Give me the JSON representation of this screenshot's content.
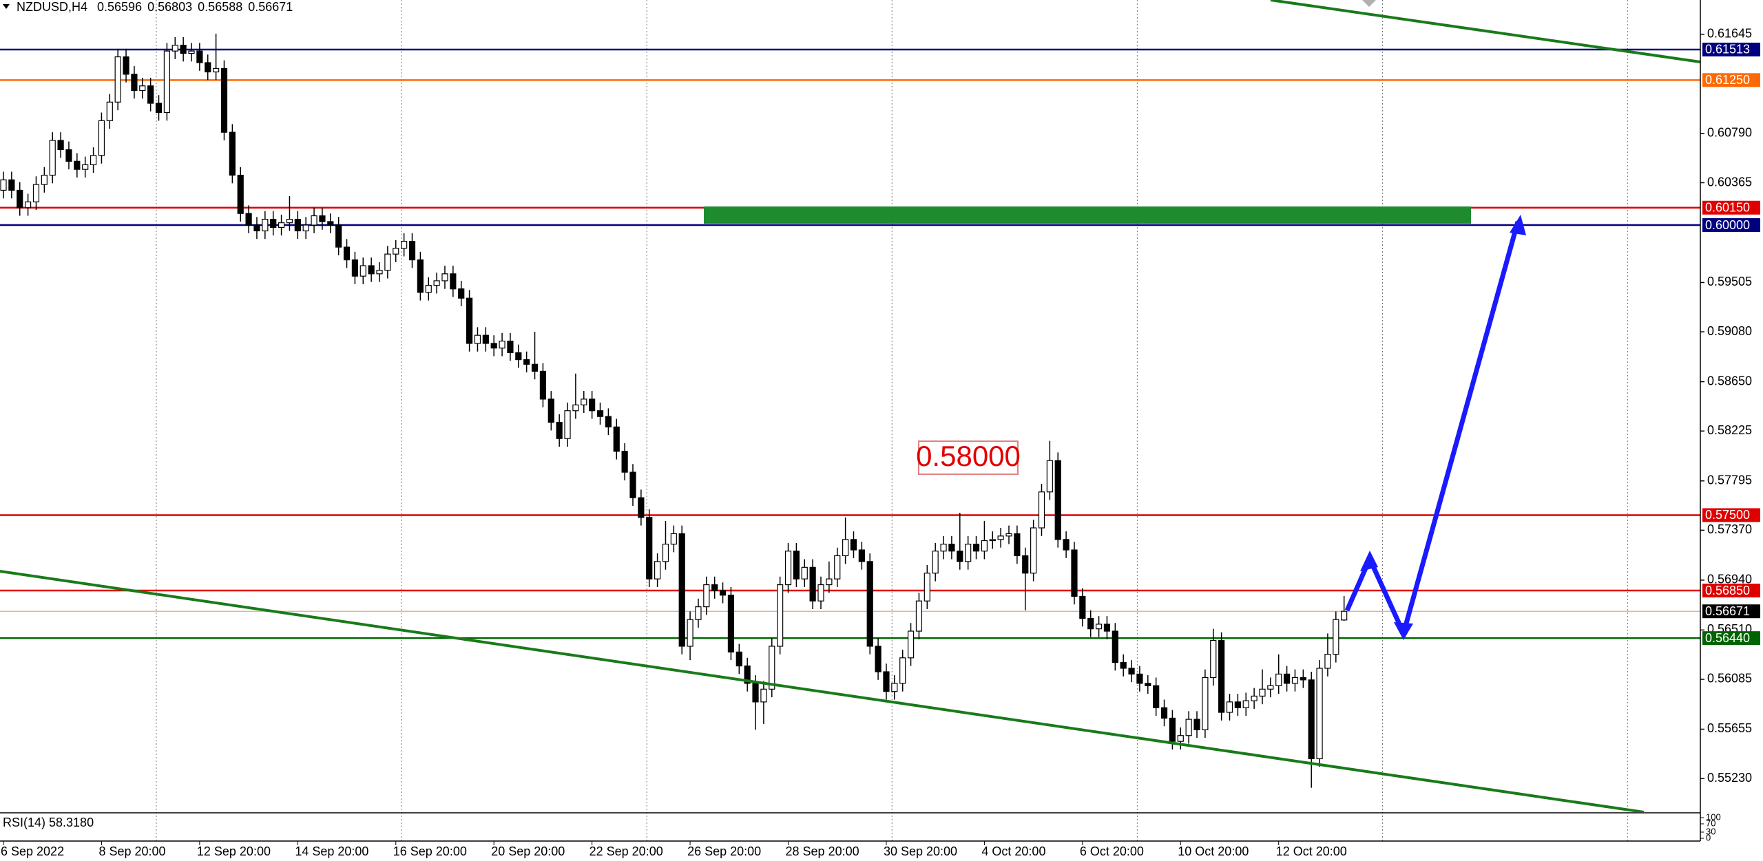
{
  "chart_data": {
    "type": "candlestick",
    "title": "NZDUSD,H4",
    "categories": [
      "6 Sep 2022",
      null,
      null,
      null,
      null,
      null,
      null,
      null,
      null,
      null,
      null,
      null,
      "8 Sep 20:00",
      null,
      null,
      null,
      null,
      null,
      null,
      null,
      null,
      null,
      null,
      null,
      "12 Sep 20:00",
      null,
      null,
      null,
      null,
      null,
      null,
      null,
      null,
      null,
      null,
      null,
      "14 Sep 20:00",
      null,
      null,
      null,
      null,
      null,
      null,
      null,
      null,
      null,
      null,
      null,
      "16 Sep 20:00",
      null,
      null,
      null,
      null,
      null,
      null,
      null,
      null,
      null,
      null,
      null,
      "20 Sep 20:00",
      null,
      null,
      null,
      null,
      null,
      null,
      null,
      null,
      null,
      null,
      null,
      "22 Sep 20:00",
      null,
      null,
      null,
      null,
      null,
      null,
      null,
      null,
      null,
      null,
      null,
      "26 Sep 20:00",
      null,
      null,
      null,
      null,
      null,
      null,
      null,
      null,
      null,
      null,
      null,
      "28 Sep 20:00",
      null,
      null,
      null,
      null,
      null,
      null,
      null,
      null,
      null,
      null,
      null,
      "30 Sep 20:00",
      null,
      null,
      null,
      null,
      null,
      null,
      null,
      null,
      null,
      null,
      null,
      "4 Oct 20:00",
      null,
      null,
      null,
      null,
      null,
      null,
      null,
      null,
      null,
      null,
      null,
      "6 Oct 20:00",
      null,
      null,
      null,
      null,
      null,
      null,
      null,
      null,
      null,
      null,
      null,
      "10 Oct 20:00",
      null,
      null,
      null,
      null,
      null,
      null,
      null,
      null,
      null,
      null,
      null,
      "12 Oct 20:00",
      null,
      null,
      null,
      null,
      null,
      null,
      null,
      null
    ],
    "open": [
      0.603,
      0.6039,
      0.603,
      0.6015,
      0.602,
      0.6035,
      0.6043,
      0.6073,
      0.6065,
      0.6055,
      0.6048,
      0.6052,
      0.606,
      0.609,
      0.6106,
      0.6145,
      0.613,
      0.6116,
      0.612,
      0.6105,
      0.6097,
      0.615,
      0.6155,
      0.6148,
      0.615,
      0.614,
      0.6132,
      0.6135,
      0.608,
      0.6043,
      0.601,
      0.6,
      0.5995,
      0.6005,
      0.5998,
      0.6002,
      0.6005,
      0.5995,
      0.6,
      0.6008,
      0.6003,
      0.6,
      0.5981,
      0.597,
      0.5956,
      0.5965,
      0.5958,
      0.5961,
      0.5975,
      0.598,
      0.5986,
      0.597,
      0.5942,
      0.5948,
      0.5952,
      0.5958,
      0.5945,
      0.5937,
      0.5898,
      0.5905,
      0.5898,
      0.5894,
      0.59,
      0.589,
      0.5884,
      0.588,
      0.5874,
      0.585,
      0.583,
      0.5816,
      0.584,
      0.5845,
      0.585,
      0.584,
      0.5835,
      0.5826,
      0.5805,
      0.5787,
      0.5765,
      0.5748,
      0.5695,
      0.571,
      0.5725,
      0.5734,
      0.5637,
      0.566,
      0.5671,
      0.569,
      0.5685,
      0.5681,
      0.5632,
      0.562,
      0.5605,
      0.5589,
      0.56,
      0.5637,
      0.569,
      0.5719,
      0.5695,
      0.5705,
      0.5676,
      0.569,
      0.5695,
      0.5715,
      0.5729,
      0.572,
      0.571,
      0.5637,
      0.5615,
      0.5598,
      0.5605,
      0.5627,
      0.565,
      0.5676,
      0.57,
      0.5719,
      0.5725,
      0.5719,
      0.571,
      0.5725,
      0.5719,
      0.5728,
      0.5729,
      0.5732,
      0.5734,
      0.5715,
      0.57,
      0.5739,
      0.577,
      0.5797,
      0.5729,
      0.572,
      0.568,
      0.5661,
      0.5652,
      0.5656,
      0.565,
      0.5623,
      0.5618,
      0.5613,
      0.5605,
      0.5603,
      0.5584,
      0.5575,
      0.5555,
      0.556,
      0.5574,
      0.5565,
      0.561,
      0.5642,
      0.558,
      0.5589,
      0.5584,
      0.559,
      0.5594,
      0.56,
      0.5603,
      0.5613,
      0.5605,
      0.561,
      0.5608,
      0.554,
      0.5618,
      0.563,
      0.56596
    ],
    "high": [
      0.6046,
      0.6046,
      0.6037,
      0.6027,
      0.6042,
      0.605,
      0.608,
      0.608,
      0.6072,
      0.6062,
      0.6059,
      0.6067,
      0.6097,
      0.6113,
      0.6152,
      0.6152,
      0.6137,
      0.6127,
      0.6127,
      0.6112,
      0.6157,
      0.6162,
      0.6162,
      0.6157,
      0.6157,
      0.6147,
      0.6165,
      0.6142,
      0.6087,
      0.605,
      0.6017,
      0.6007,
      0.6012,
      0.6012,
      0.6009,
      0.6025,
      0.6012,
      0.6007,
      0.6015,
      0.6015,
      0.601,
      0.6007,
      0.5988,
      0.5977,
      0.5972,
      0.5972,
      0.5968,
      0.5982,
      0.5987,
      0.5993,
      0.5993,
      0.5977,
      0.5955,
      0.5959,
      0.5965,
      0.5965,
      0.5952,
      0.5944,
      0.5912,
      0.5912,
      0.5905,
      0.5907,
      0.5907,
      0.5897,
      0.5891,
      0.5908,
      0.5881,
      0.5857,
      0.5837,
      0.5847,
      0.5872,
      0.5857,
      0.5857,
      0.5847,
      0.5842,
      0.5833,
      0.5812,
      0.5794,
      0.5772,
      0.5755,
      0.5717,
      0.5745,
      0.5741,
      0.5741,
      0.5667,
      0.5678,
      0.5697,
      0.5697,
      0.5692,
      0.5688,
      0.5639,
      0.5627,
      0.5612,
      0.5607,
      0.5644,
      0.5697,
      0.5726,
      0.5726,
      0.5712,
      0.5712,
      0.5697,
      0.571,
      0.5722,
      0.5748,
      0.5736,
      0.5727,
      0.5717,
      0.5644,
      0.5622,
      0.5612,
      0.5634,
      0.5657,
      0.5683,
      0.5707,
      0.5726,
      0.5732,
      0.5732,
      0.5752,
      0.5732,
      0.5732,
      0.5745,
      0.5736,
      0.5739,
      0.5741,
      0.5741,
      0.5722,
      0.5746,
      0.5777,
      0.5814,
      0.5804,
      0.5736,
      0.5727,
      0.5687,
      0.5668,
      0.5663,
      0.5663,
      0.5657,
      0.563,
      0.5625,
      0.562,
      0.5612,
      0.561,
      0.5591,
      0.5582,
      0.5567,
      0.5581,
      0.5581,
      0.5617,
      0.5652,
      0.5649,
      0.5596,
      0.5596,
      0.5597,
      0.5601,
      0.5617,
      0.561,
      0.563,
      0.562,
      0.5617,
      0.5617,
      0.5615,
      0.5625,
      0.5648,
      0.5667,
      0.56803
    ],
    "low": [
      0.6023,
      0.6023,
      0.6008,
      0.6008,
      0.6013,
      0.6028,
      0.6036,
      0.6058,
      0.6048,
      0.6041,
      0.6041,
      0.6045,
      0.6053,
      0.6083,
      0.6099,
      0.6123,
      0.6109,
      0.6109,
      0.6098,
      0.609,
      0.609,
      0.6143,
      0.6141,
      0.6141,
      0.6133,
      0.6125,
      0.6125,
      0.6073,
      0.6036,
      0.6003,
      0.5993,
      0.5988,
      0.5988,
      0.5991,
      0.5991,
      0.5995,
      0.5988,
      0.5988,
      0.5993,
      0.5996,
      0.5993,
      0.5974,
      0.5963,
      0.5949,
      0.5949,
      0.5951,
      0.5951,
      0.5954,
      0.5968,
      0.5973,
      0.5963,
      0.5935,
      0.5935,
      0.5941,
      0.5945,
      0.5938,
      0.593,
      0.5891,
      0.5891,
      0.5891,
      0.5887,
      0.5887,
      0.5883,
      0.5877,
      0.5873,
      0.5867,
      0.5843,
      0.5823,
      0.5809,
      0.5809,
      0.5833,
      0.5838,
      0.5833,
      0.5828,
      0.5819,
      0.5798,
      0.578,
      0.5758,
      0.5741,
      0.5688,
      0.5688,
      0.5703,
      0.5718,
      0.563,
      0.5625,
      0.5653,
      0.5664,
      0.5678,
      0.5674,
      0.5625,
      0.5613,
      0.5598,
      0.5565,
      0.557,
      0.5593,
      0.563,
      0.5683,
      0.5688,
      0.5688,
      0.5669,
      0.5669,
      0.5683,
      0.5688,
      0.5708,
      0.5713,
      0.5703,
      0.563,
      0.5608,
      0.5591,
      0.5591,
      0.5598,
      0.562,
      0.5643,
      0.5669,
      0.5693,
      0.5712,
      0.5712,
      0.5703,
      0.5703,
      0.5712,
      0.5712,
      0.5721,
      0.5722,
      0.5725,
      0.5708,
      0.5668,
      0.5693,
      0.5732,
      0.5763,
      0.5722,
      0.5713,
      0.5673,
      0.5654,
      0.5645,
      0.5645,
      0.5643,
      0.5616,
      0.5611,
      0.5606,
      0.5598,
      0.5596,
      0.5577,
      0.5568,
      0.5548,
      0.5548,
      0.5553,
      0.5558,
      0.5558,
      0.5603,
      0.5573,
      0.5573,
      0.5577,
      0.5577,
      0.5583,
      0.5587,
      0.5593,
      0.5596,
      0.5598,
      0.5598,
      0.5601,
      0.5515,
      0.5533,
      0.5611,
      0.5623,
      0.56588
    ],
    "close": [
      0.6039,
      0.603,
      0.6015,
      0.602,
      0.6035,
      0.6043,
      0.6073,
      0.6065,
      0.6055,
      0.6048,
      0.6052,
      0.606,
      0.609,
      0.6106,
      0.6145,
      0.613,
      0.6116,
      0.612,
      0.6105,
      0.6097,
      0.615,
      0.6155,
      0.6148,
      0.615,
      0.614,
      0.6132,
      0.6135,
      0.608,
      0.6043,
      0.601,
      0.6,
      0.5995,
      0.6005,
      0.5998,
      0.6002,
      0.6005,
      0.5995,
      0.6,
      0.6008,
      0.6003,
      0.6,
      0.5981,
      0.597,
      0.5956,
      0.5965,
      0.5958,
      0.5961,
      0.5975,
      0.598,
      0.5986,
      0.597,
      0.5942,
      0.5948,
      0.5952,
      0.5958,
      0.5945,
      0.5937,
      0.5898,
      0.5905,
      0.5898,
      0.5894,
      0.59,
      0.589,
      0.5884,
      0.588,
      0.5874,
      0.585,
      0.583,
      0.5816,
      0.584,
      0.5845,
      0.585,
      0.584,
      0.5835,
      0.5826,
      0.5805,
      0.5787,
      0.5765,
      0.5748,
      0.5695,
      0.571,
      0.5725,
      0.5734,
      0.5637,
      0.566,
      0.5671,
      0.569,
      0.5685,
      0.5681,
      0.5632,
      0.562,
      0.5605,
      0.5589,
      0.56,
      0.5637,
      0.569,
      0.5719,
      0.5695,
      0.5705,
      0.5676,
      0.569,
      0.5695,
      0.5715,
      0.5729,
      0.572,
      0.571,
      0.5637,
      0.5615,
      0.5598,
      0.5605,
      0.5627,
      0.565,
      0.5676,
      0.57,
      0.5719,
      0.5725,
      0.5719,
      0.571,
      0.5725,
      0.5719,
      0.5728,
      0.5729,
      0.5732,
      0.5734,
      0.5715,
      0.57,
      0.5739,
      0.577,
      0.5797,
      0.5729,
      0.572,
      0.568,
      0.5661,
      0.5652,
      0.5656,
      0.565,
      0.5623,
      0.5618,
      0.5613,
      0.5605,
      0.5603,
      0.5584,
      0.5575,
      0.5555,
      0.556,
      0.5574,
      0.5565,
      0.561,
      0.5642,
      0.558,
      0.5589,
      0.5584,
      0.559,
      0.5594,
      0.56,
      0.5603,
      0.5613,
      0.5605,
      0.561,
      0.5608,
      0.554,
      0.5618,
      0.563,
      0.566,
      0.56671
    ],
    "bull_color": "#ffffff",
    "bear_color": "#000000",
    "ylim": [
      0.5494,
      0.6194
    ],
    "yticks": [
      0.61645,
      {
        "value": 0.6079,
        "label": "0.60790"
      },
      0.60365,
      0.59505,
      {
        "value": 0.5908,
        "label": "0.59080"
      },
      {
        "value": 0.5865,
        "label": "0.58650"
      },
      0.58225,
      0.57795,
      {
        "value": 0.5737,
        "label": "0.57370"
      },
      {
        "value": 0.5694,
        "label": "0.56940"
      },
      {
        "value": 0.5651,
        "label": "0.56510"
      },
      0.56085,
      0.55655,
      {
        "value": 0.5523,
        "label": "0.55230"
      }
    ],
    "levels": [
      {
        "value": 0.61513,
        "color": "#00007f"
      },
      {
        "value": 0.6125,
        "label": "0.61250",
        "color": "#ff6a00"
      },
      {
        "value": 0.6015,
        "label": "0.60150",
        "color": "#e00000"
      },
      {
        "value": 0.6,
        "label": "0.60000",
        "color": "#00007f"
      },
      {
        "value": 0.575,
        "label": "0.57500",
        "color": "#e00000"
      },
      {
        "value": 0.5685,
        "label": "0.56850",
        "color": "#e00000"
      },
      {
        "value": 0.5644,
        "label": "0.56440",
        "color": "#006400"
      }
    ],
    "annotation": "0.58000",
    "rsi_label": "RSI(14) 58.3180",
    "rsi_ylim": [
      0,
      100
    ],
    "rsi_yticks": [
      100,
      70,
      30,
      0
    ]
  }
}
